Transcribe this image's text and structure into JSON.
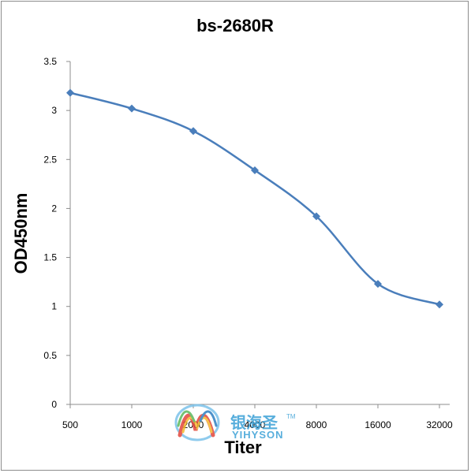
{
  "chart_data": {
    "type": "line",
    "title": "bs-2680R",
    "xlabel": "Titer",
    "ylabel": "OD450nm",
    "categories": [
      "500",
      "1000",
      "2000",
      "4000",
      "8000",
      "16000",
      "32000"
    ],
    "series": [
      {
        "values": [
          3.18,
          3.02,
          2.79,
          2.39,
          1.92,
          1.23,
          1.02
        ]
      }
    ],
    "ylim": [
      0,
      3.5
    ],
    "yticks": [
      "0",
      "0.5",
      "1",
      "1.5",
      "2",
      "2.5",
      "3",
      "3.5"
    ],
    "grid": false,
    "legend": "none",
    "line_color": "#4a7ebb",
    "marker": "diamond"
  },
  "watermark": {
    "cn": "银海圣",
    "en": "YIHYSON",
    "tm": "TM"
  }
}
